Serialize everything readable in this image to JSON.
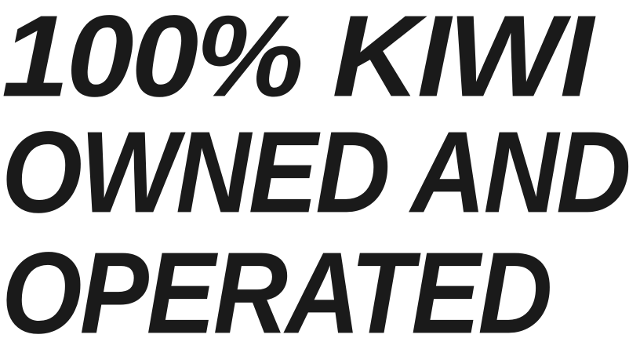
{
  "headline": {
    "line_1": "100% KIWI",
    "line_2": "OWNED AND",
    "line_3": "OPERATED"
  },
  "colors": {
    "text": "#1a1a1a",
    "background": "#ffffff"
  }
}
